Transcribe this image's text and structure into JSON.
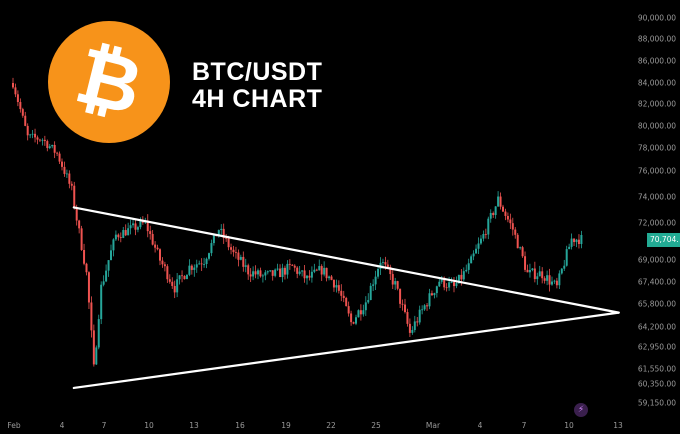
{
  "title": {
    "line1": "BTC/USDT",
    "line2": "4H CHART"
  },
  "logo": {
    "glyph": "₿",
    "color": "#f7931a"
  },
  "price_badge": "70,704.",
  "colors": {
    "up": "#26a69a",
    "down": "#ef5350",
    "background": "#000000",
    "trendline": "#ffffff"
  },
  "chart_data": {
    "type": "candlestick",
    "y_ticks": [
      "90,000.00",
      "88,000.00",
      "86,000.00",
      "84,000.00",
      "82,000.00",
      "80,000.00",
      "78,000.00",
      "76,000.00",
      "74,000.00",
      "72,000.00",
      "69,000.00",
      "67,400.00",
      "65,800.00",
      "64,200.00",
      "62,950.00",
      "61,550.00",
      "60,350.00",
      "59,150.00"
    ],
    "x_ticks": [
      "Feb",
      "4",
      "7",
      "10",
      "13",
      "16",
      "19",
      "22",
      "25",
      "Mar",
      "4",
      "7",
      "10",
      "13"
    ],
    "anchors": [
      [
        "Feb 1",
        84000
      ],
      [
        "Feb 2",
        79000
      ],
      [
        "Feb 3",
        78800
      ],
      [
        "Feb 4",
        77500
      ],
      [
        "Feb 5",
        74500
      ],
      [
        "Feb 6",
        68000
      ],
      [
        "Feb 6.5",
        61500
      ],
      [
        "Feb 7",
        67000
      ],
      [
        "Feb 8",
        71000
      ],
      [
        "Feb 10",
        72000
      ],
      [
        "Feb 11",
        69000
      ],
      [
        "Feb 12",
        67000
      ],
      [
        "Feb 13",
        68500
      ],
      [
        "Feb 14",
        69000
      ],
      [
        "Feb 15",
        71500
      ],
      [
        "Feb 16",
        69500
      ],
      [
        "Feb 17",
        68200
      ],
      [
        "Feb 18",
        67800
      ],
      [
        "Feb 19",
        68000
      ],
      [
        "Feb 20",
        68500
      ],
      [
        "Feb 21",
        67600
      ],
      [
        "Feb 22",
        68300
      ],
      [
        "Feb 23",
        67200
      ],
      [
        "Feb 24",
        64500
      ],
      [
        "Feb 25",
        66000
      ],
      [
        "Feb 26",
        69000
      ],
      [
        "Feb 27",
        67200
      ],
      [
        "Feb 28",
        63800
      ],
      [
        "Mar 1",
        67500
      ],
      [
        "Mar 2",
        67000
      ],
      [
        "Mar 3",
        68500
      ],
      [
        "Mar 4",
        71000
      ],
      [
        "Mar 5",
        73800
      ],
      [
        "Mar 6",
        71500
      ],
      [
        "Mar 7",
        68000
      ],
      [
        "Mar 8",
        68000
      ],
      [
        "Mar 9",
        67000
      ],
      [
        "Mar 10",
        70700
      ]
    ],
    "trendlines": [
      {
        "name": "upper",
        "from": [
          "Feb 5",
          73200
        ],
        "to": [
          "Mar 13",
          65200
        ]
      },
      {
        "name": "lower",
        "from": [
          "Feb 5",
          60100
        ],
        "to": [
          "Mar 13",
          65200
        ]
      }
    ],
    "y_scale": "piecewise-linear by tick labels",
    "grid": false
  }
}
